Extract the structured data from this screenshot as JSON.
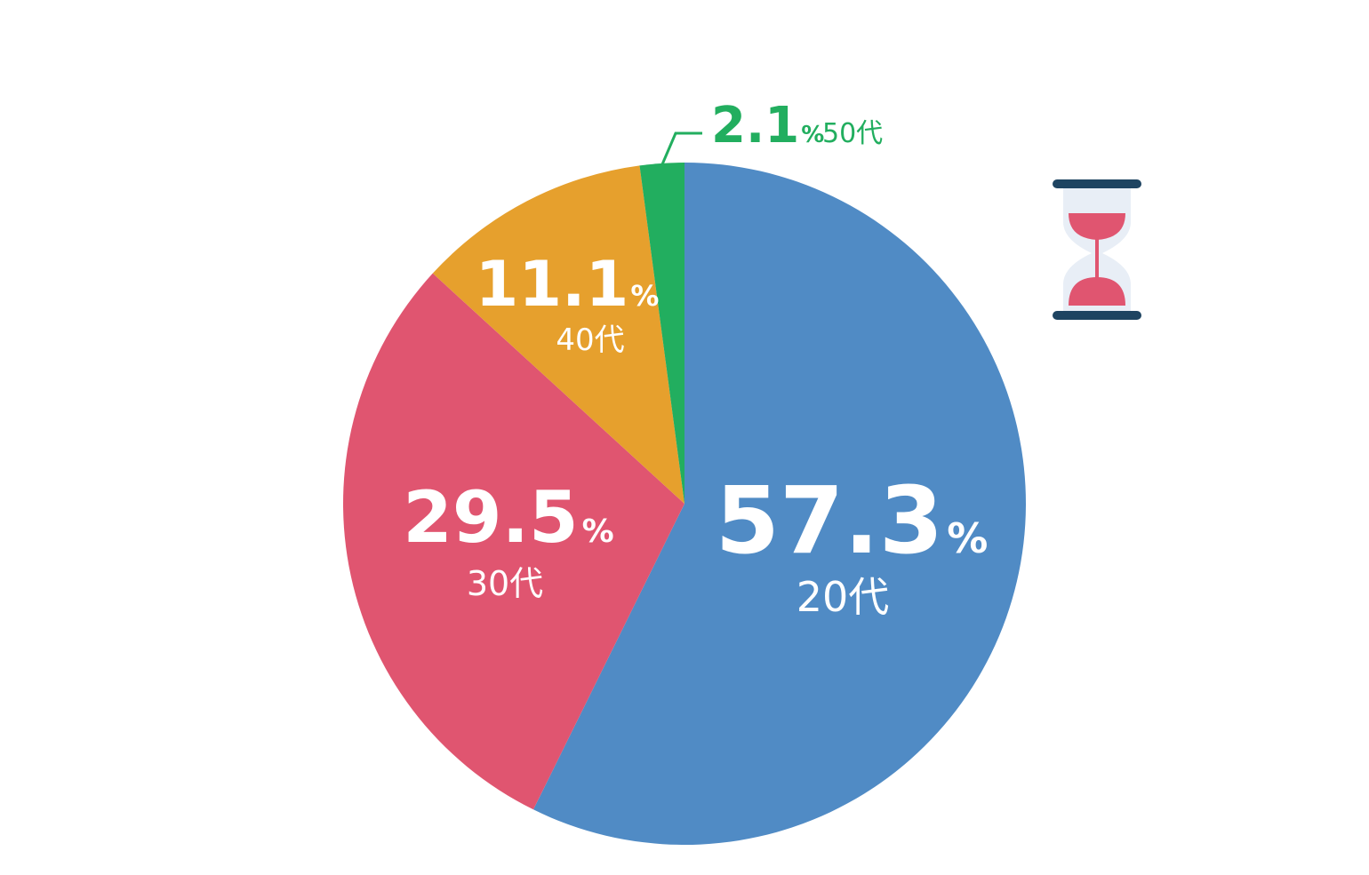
{
  "chart_data": {
    "type": "pie",
    "categories": [
      "20代",
      "30代",
      "40代",
      "50代"
    ],
    "values": [
      57.3,
      29.5,
      11.1,
      2.1
    ],
    "value_texts": [
      "57.3",
      "29.5",
      "11.1",
      "2.1"
    ],
    "unit": "%",
    "colors": [
      "#508BC5",
      "#E05570",
      "#E6A02D",
      "#22AE5F"
    ],
    "start": "12 o'clock, clockwise",
    "legend": "none"
  },
  "icon": {
    "name": "hourglass-icon",
    "frame_color": "#1E4461",
    "sand_color": "#E05570",
    "glass_color": "#E8EEF6"
  }
}
